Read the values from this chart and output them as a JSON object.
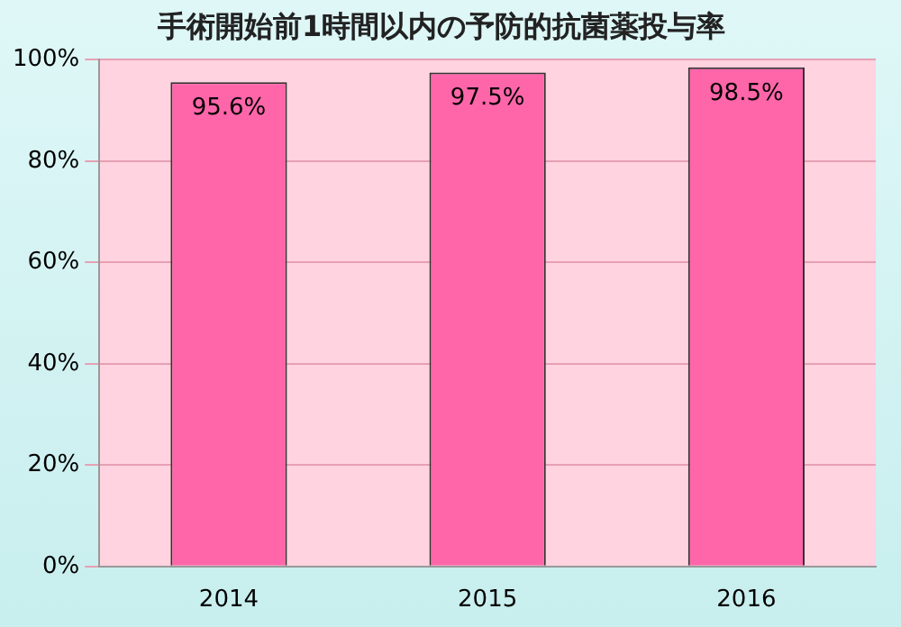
{
  "chart_data": {
    "type": "bar",
    "title": "手術開始前1時間以内の予防的抗菌薬投与率",
    "categories": [
      "2014",
      "2015",
      "2016"
    ],
    "values": [
      95.6,
      97.5,
      98.5
    ],
    "value_labels": [
      "95.6%",
      "97.5%",
      "98.5%"
    ],
    "color": "#ff66aa",
    "ylim": [
      0,
      100
    ],
    "yticks": [
      {
        "value": 0,
        "label": "0%"
      },
      {
        "value": 20,
        "label": "20%"
      },
      {
        "value": 40,
        "label": "40%"
      },
      {
        "value": 60,
        "label": "60%"
      },
      {
        "value": 80,
        "label": "80%"
      },
      {
        "value": 100,
        "label": "100%"
      }
    ],
    "grid": "y",
    "legend": false
  }
}
